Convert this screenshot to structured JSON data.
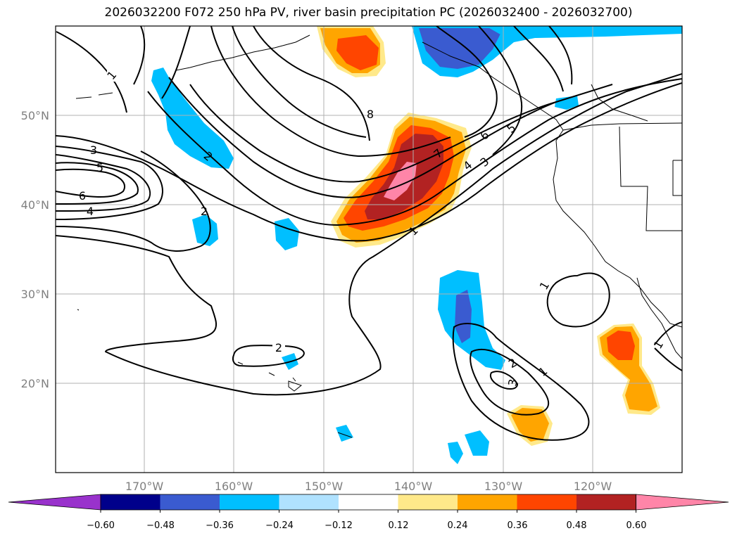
{
  "title": "2026032200 F072 250 hPa PV, river basin precipitation PC (2026032400 - 2026032700)",
  "map": {
    "extent": {
      "lon": [
        -180,
        -110
      ],
      "lat": [
        10,
        60
      ]
    },
    "lon_ticks": [
      "170°W",
      "160°W",
      "150°W",
      "140°W",
      "130°W",
      "120°W"
    ],
    "lat_ticks": [
      "20°N",
      "30°N",
      "40°N",
      "50°N"
    ],
    "grid": true,
    "contour_labels": [
      "1",
      "3",
      "5",
      "6",
      "4",
      "2",
      "2",
      "8",
      "6",
      "5",
      "7",
      "4",
      "3",
      "1",
      "2",
      "1",
      "2",
      "3",
      "1",
      "1"
    ]
  },
  "colorbar": {
    "ticks": [
      "−0.60",
      "−0.48",
      "−0.36",
      "−0.24",
      "−0.12",
      "0.12",
      "0.24",
      "0.36",
      "0.48",
      "0.60"
    ],
    "colors": [
      "#9932CC",
      "#00008B",
      "#3A5BD0",
      "#00BFFF",
      "#B0E2FF",
      "#FFFFFF",
      "#FFE98A",
      "#FFA500",
      "#FF4500",
      "#B22222",
      "#FF85A8"
    ],
    "extend": "both"
  }
}
